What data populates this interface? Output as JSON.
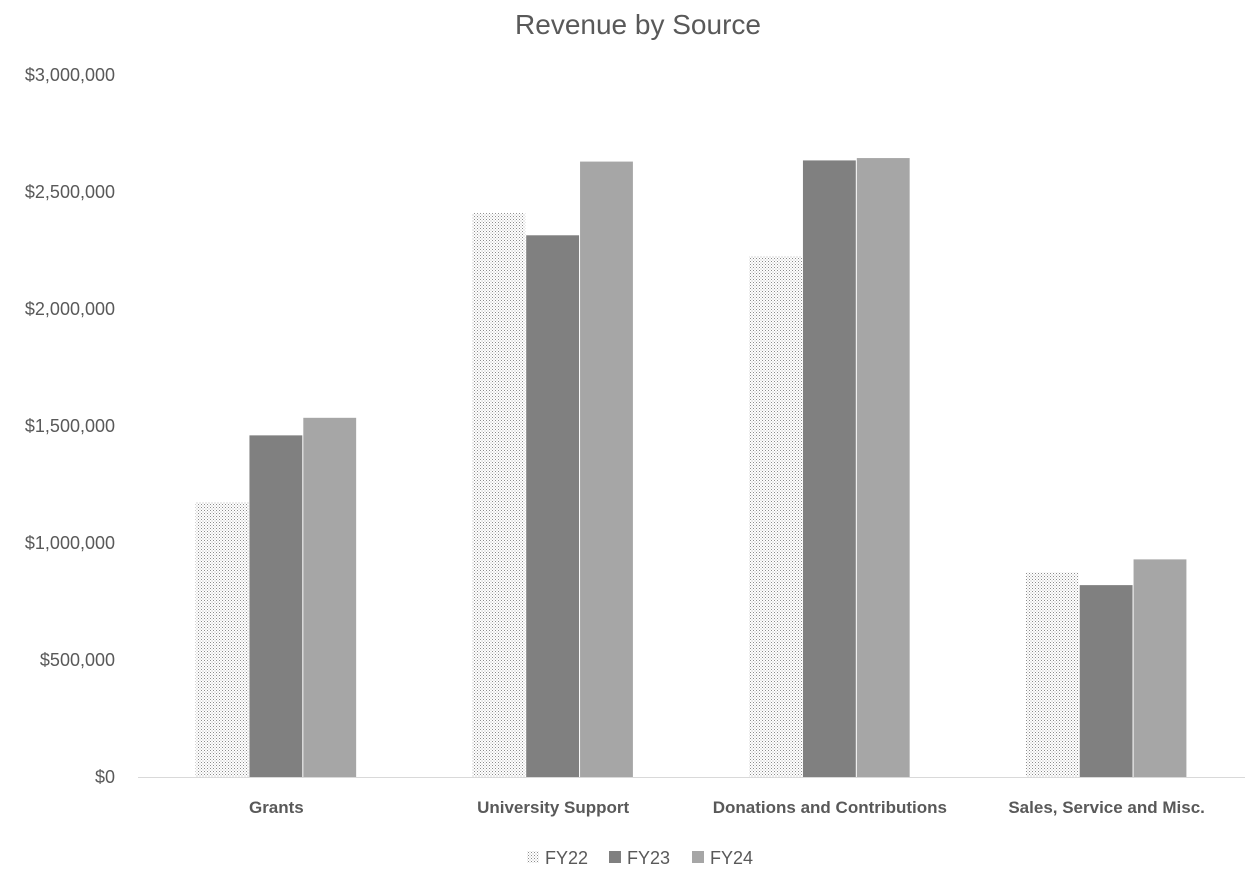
{
  "chart_data": {
    "type": "bar",
    "title": "Revenue by Source",
    "xlabel": "",
    "ylabel": "",
    "categories": [
      "Grants",
      "University Support",
      "Donations and Contributions",
      "Sales, Service and Misc."
    ],
    "series": [
      {
        "name": "FY22",
        "values": [
          1175000,
          2410000,
          2225000,
          875000
        ],
        "color": "#d9d9d9",
        "pattern": "dotted"
      },
      {
        "name": "FY23",
        "values": [
          1460000,
          2315000,
          2635000,
          820000
        ],
        "color": "#808080",
        "pattern": "solid"
      },
      {
        "name": "FY24",
        "values": [
          1535000,
          2630000,
          2645000,
          930000
        ],
        "color": "#a6a6a6",
        "pattern": "solid"
      }
    ],
    "ylim": [
      0,
      3000000
    ],
    "yticks": [
      0,
      500000,
      1000000,
      1500000,
      2000000,
      2500000,
      3000000
    ],
    "ytick_labels": [
      "$0",
      "$500,000",
      "$1,000,000",
      "$1,500,000",
      "$2,000,000",
      "$2,500,000",
      "$3,000,000"
    ],
    "grid": false,
    "legend_position": "bottom"
  }
}
